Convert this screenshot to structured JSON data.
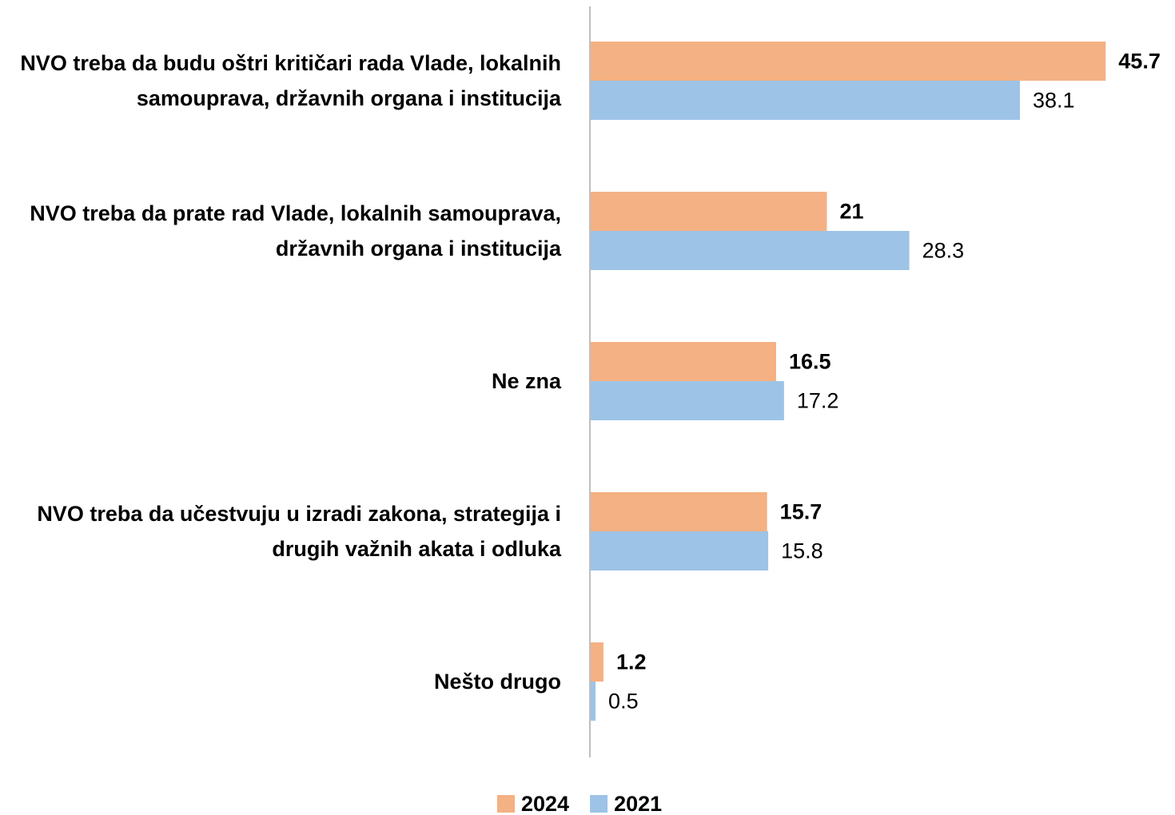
{
  "chart_data": {
    "type": "barh",
    "categories": [
      "NVO treba da budu oštri kritičari rada Vlade, lokalnih samouprava, državnih organa i institucija",
      "NVO treba da prate rad Vlade, lokalnih samouprava, državnih organa i institucija",
      "Ne zna",
      "NVO treba da učestvuju u izradi zakona, strategija i drugih važnih akata i odluka",
      "Nešto drugo"
    ],
    "series": [
      {
        "name": "2024",
        "color": "#F4B183",
        "values": [
          45.7,
          21,
          16.5,
          15.7,
          1.2
        ]
      },
      {
        "name": "2021",
        "color": "#9DC3E6",
        "values": [
          38.1,
          28.3,
          17.2,
          15.8,
          0.5
        ]
      }
    ],
    "xlim": [
      0,
      50
    ],
    "legend": "bottom"
  }
}
